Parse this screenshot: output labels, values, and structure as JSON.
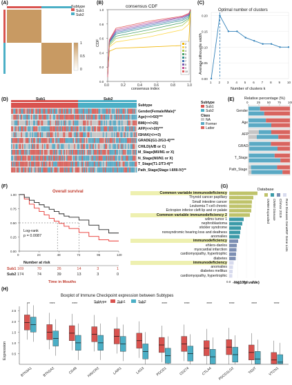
{
  "panel_labels": {
    "a": "(A)",
    "b": "(B)",
    "c": "(C)",
    "d": "(D)",
    "e": "(E)",
    "f": "(F)",
    "g": "(G)",
    "h": "(H)"
  },
  "colors": {
    "sub1": "#d9534f",
    "sub2": "#4bafc6",
    "heat_hi": "#c89a63",
    "heat_lo": "#ffffff",
    "heat_mid": "#e8d3b6",
    "km_sub1": "#e8332f",
    "km_sub2": "#222222",
    "na": "#c6c6c6",
    "former": "#5aa9c4",
    "latter": "#d8655f",
    "bar_olive": "#bfc36b",
    "bar_teal": "#3b9aa8",
    "bar_steel": "#7d8fb3",
    "bar_light": "#d8dbee"
  },
  "panel_a": {
    "legend_title": "Subtype",
    "legend_items": [
      "Sub1",
      "Sub2"
    ],
    "scale_ticks": [
      "1",
      "0.5",
      "0"
    ]
  },
  "panel_b": {
    "title": "consensus CDF",
    "xlabel": "consensus index",
    "ylabel": "CDF",
    "x_ticks": [
      "0.0",
      "0.2",
      "0.4",
      "0.6",
      "0.8",
      "1.0"
    ],
    "y_ticks": [
      "0.0",
      "0.2",
      "0.4",
      "0.6",
      "0.8",
      "1.0"
    ],
    "legend_items": [
      "2",
      "3",
      "4",
      "5",
      "6",
      "7",
      "8",
      "9",
      "10"
    ]
  },
  "panel_c": {
    "title": "Optimal number of clusters",
    "xlabel": "Number of clusters k",
    "ylabel": "Average silhouette width",
    "x_ticks": [
      "1",
      "2",
      "3",
      "4",
      "5",
      "6",
      "7",
      "8",
      "9",
      "10"
    ],
    "y_ticks": [
      "0.00",
      "0.05",
      "0.10",
      "0.15",
      "0.20"
    ]
  },
  "panel_d": {
    "header_sub1": "Sub1",
    "header_sub2": "Sub2",
    "rows": [
      "Subtype",
      "Gender(Female/Male)*",
      "Age(<=/>50)***",
      "BMI(<=/>25)",
      "AFP(<=/>20)***",
      "ISHAK(</>=3)",
      "GRADE(G1-2/G3-4)***",
      "CHILD(A/B or C)",
      "M_Stage(M0/M1 or X)",
      "N_Stage(N0/N1 or X)",
      "T_Stage(T1-2/T3-4)**",
      "Path_Stage(Stage I-II/III-IV)**"
    ],
    "legend_subtype_title": "Subtype",
    "legend_subtype": [
      "Sub1",
      "Sub2"
    ],
    "legend_class_title": "Class",
    "legend_class": [
      "NA",
      "Former",
      "Latter"
    ]
  },
  "panel_e": {
    "xlabel": "Relative percentage (%)",
    "x_ticks": [
      "0",
      "25",
      "50",
      "75",
      "100"
    ],
    "groups": [
      "Gender",
      "Age",
      "AFP",
      "GRADE",
      "T_Stage",
      "Path_Stage"
    ]
  },
  "panel_f": {
    "title": "Overall survival",
    "y_ticks": [
      "1.00",
      "0.75",
      "0.50",
      "0.25",
      "0.00"
    ],
    "x_ticks": [
      "0",
      "24",
      "48",
      "72",
      "96",
      "120"
    ],
    "logrank": "Log-rank",
    "pvalue": "p = 0.0087",
    "risk_title": "Number at risk",
    "risk_rows": [
      {
        "name": "Sub1",
        "values": [
          "169",
          "70",
          "26",
          "14",
          "3",
          "1"
        ]
      },
      {
        "name": "Sub2",
        "values": [
          "174",
          "74",
          "39",
          "13",
          "3",
          "0"
        ]
      }
    ],
    "xlabel": "Time in Mouths"
  },
  "panel_g": {
    "xlabel": "-log10(p.value)",
    "x_ticks": [
      "0.0",
      "2.5",
      "5.0",
      "7.5"
    ],
    "legend_title": "Database",
    "legend_items": [
      "OMIM Expanded",
      "OMIM Disease",
      "ClinVar 2019",
      "Rare Diseases GeneRIF Gene Lists"
    ],
    "terms": [
      {
        "label": "Common variable immunodeficiency",
        "value": 8.2,
        "db": "olive",
        "boxed": true
      },
      {
        "label": "Thyroid cancer papillary",
        "value": 7.0,
        "db": "olive",
        "boxed": false
      },
      {
        "label": "Small intestine cancer",
        "value": 6.6,
        "db": "olive",
        "boxed": false
      },
      {
        "label": "Leukemia T-cell chronic",
        "value": 6.5,
        "db": "olive",
        "boxed": false
      },
      {
        "label": "Ectropion inferior cleft lip and or palate",
        "value": 6.4,
        "db": "olive",
        "boxed": false
      },
      {
        "label": "Common variable immunodeficiency 2",
        "value": 6.0,
        "db": "olive",
        "boxed": true
      },
      {
        "label": "wilms tumor 1",
        "value": 4.2,
        "db": "teal",
        "boxed": false
      },
      {
        "label": "nephroblastoma",
        "value": 3.8,
        "db": "teal",
        "boxed": false
      },
      {
        "label": "stickler syndrome",
        "value": 3.4,
        "db": "teal",
        "boxed": false
      },
      {
        "label": "nonsyndromic hearing loss and deafness",
        "value": 3.2,
        "db": "teal",
        "boxed": false
      },
      {
        "label": "anomalies",
        "value": 3.0,
        "db": "teal",
        "boxed": false
      },
      {
        "label": "immunodeficiency",
        "value": 2.6,
        "db": "steel",
        "boxed": true
      },
      {
        "label": "ehlers-danlos",
        "value": 2.2,
        "db": "steel",
        "boxed": false
      },
      {
        "label": "myocardial infarction",
        "value": 2.1,
        "db": "steel",
        "boxed": false
      },
      {
        "label": "cardiomyopathy, hypertrophic",
        "value": 2.0,
        "db": "steel",
        "boxed": false
      },
      {
        "label": "diabetes",
        "value": 1.9,
        "db": "steel",
        "boxed": false
      },
      {
        "label": "immunodeficiency",
        "value": 1.3,
        "db": "light",
        "boxed": true
      },
      {
        "label": "anomalies",
        "value": 1.1,
        "db": "light",
        "boxed": false
      },
      {
        "label": "diabetes mellitus",
        "value": 1.0,
        "db": "light",
        "boxed": false
      },
      {
        "label": "cardiomyopathy, hypertrophic",
        "value": 0.9,
        "db": "light",
        "boxed": false
      }
    ]
  },
  "panel_h": {
    "title": "Boxplot of Immune Checkpoint expression between Subtypes",
    "legend_title": "Subtype",
    "legend_items": [
      "Sub1",
      "Sub2"
    ],
    "ylabel": "Expression",
    "y_ticks": [
      "0.5",
      "1.0",
      "1.5",
      "2.0",
      "2.5"
    ]
  },
  "chart_data": [
    {
      "type": "line",
      "title": "consensus CDF",
      "xlabel": "consensus index",
      "ylabel": "CDF",
      "xlim": [
        0,
        1
      ],
      "ylim": [
        0,
        1
      ],
      "legend": "bottom-right",
      "series": [
        {
          "name": "2",
          "x": [
            0,
            0.02,
            0.1,
            0.5,
            0.9,
            0.98,
            1.0
          ],
          "y": [
            0.12,
            0.42,
            0.46,
            0.48,
            0.5,
            0.55,
            1.0
          ]
        },
        {
          "name": "3",
          "x": [
            0,
            0.02,
            0.1,
            0.5,
            0.9,
            0.98,
            1.0
          ],
          "y": [
            0.1,
            0.48,
            0.55,
            0.62,
            0.72,
            0.8,
            1.0
          ]
        },
        {
          "name": "4",
          "x": [
            0,
            0.02,
            0.1,
            0.5,
            0.9,
            0.98,
            1.0
          ],
          "y": [
            0.09,
            0.5,
            0.6,
            0.68,
            0.78,
            0.86,
            1.0
          ]
        },
        {
          "name": "5",
          "x": [
            0,
            0.02,
            0.1,
            0.5,
            0.9,
            0.98,
            1.0
          ],
          "y": [
            0.08,
            0.52,
            0.63,
            0.72,
            0.82,
            0.88,
            1.0
          ]
        },
        {
          "name": "6",
          "x": [
            0,
            0.02,
            0.1,
            0.5,
            0.9,
            0.98,
            1.0
          ],
          "y": [
            0.08,
            0.54,
            0.66,
            0.76,
            0.85,
            0.9,
            1.0
          ]
        },
        {
          "name": "7",
          "x": [
            0,
            0.02,
            0.1,
            0.5,
            0.9,
            0.98,
            1.0
          ],
          "y": [
            0.07,
            0.55,
            0.68,
            0.78,
            0.87,
            0.92,
            1.0
          ]
        },
        {
          "name": "8",
          "x": [
            0,
            0.02,
            0.1,
            0.5,
            0.9,
            0.98,
            1.0
          ],
          "y": [
            0.07,
            0.56,
            0.7,
            0.8,
            0.89,
            0.93,
            1.0
          ]
        },
        {
          "name": "9",
          "x": [
            0,
            0.02,
            0.1,
            0.5,
            0.9,
            0.98,
            1.0
          ],
          "y": [
            0.06,
            0.57,
            0.72,
            0.82,
            0.9,
            0.94,
            1.0
          ]
        },
        {
          "name": "10",
          "x": [
            0,
            0.02,
            0.1,
            0.5,
            0.9,
            0.98,
            1.0
          ],
          "y": [
            0.06,
            0.58,
            0.74,
            0.84,
            0.91,
            0.95,
            1.0
          ]
        }
      ]
    },
    {
      "type": "line",
      "title": "Optimal number of clusters",
      "xlabel": "Number of clusters k",
      "ylabel": "Average silhouette width",
      "x": [
        1,
        2,
        3,
        4,
        5,
        6,
        7,
        8,
        9,
        10
      ],
      "y": [
        0.0,
        0.2,
        0.15,
        0.15,
        0.13,
        0.12,
        0.11,
        0.11,
        0.1,
        0.1
      ],
      "ylim": [
        0,
        0.21
      ],
      "vline": 2
    },
    {
      "type": "bar",
      "orientation": "horizontal",
      "stacked": true,
      "xlabel": "Relative percentage (%)",
      "groups": [
        "Gender",
        "Age",
        "AFP",
        "GRADE",
        "T_Stage",
        "Path_Stage"
      ],
      "series": [
        {
          "name": "NA",
          "values_sub1": [
            0,
            0,
            25,
            2,
            1,
            6
          ],
          "values_sub2": [
            0,
            0,
            20,
            2,
            1,
            7
          ]
        },
        {
          "name": "Former",
          "values_sub1": [
            28,
            42,
            30,
            52,
            62,
            63
          ],
          "values_sub2": [
            38,
            55,
            52,
            68,
            76,
            75
          ]
        },
        {
          "name": "Latter",
          "values_sub1": [
            72,
            58,
            45,
            46,
            37,
            31
          ],
          "values_sub2": [
            62,
            45,
            28,
            30,
            23,
            18
          ]
        }
      ]
    },
    {
      "type": "line",
      "title": "Overall survival",
      "xlabel": "Time in Mouths",
      "xlim": [
        0,
        120
      ],
      "ylim": [
        0,
        1
      ],
      "series": [
        {
          "name": "Sub1",
          "x": [
            0,
            6,
            12,
            18,
            24,
            30,
            36,
            42,
            48,
            54,
            60,
            72,
            84,
            96,
            108,
            120
          ],
          "y": [
            1.0,
            0.92,
            0.83,
            0.76,
            0.7,
            0.64,
            0.58,
            0.53,
            0.49,
            0.44,
            0.4,
            0.33,
            0.26,
            0.2,
            0.18,
            0.18
          ]
        },
        {
          "name": "Sub2",
          "x": [
            0,
            6,
            12,
            18,
            24,
            30,
            36,
            42,
            48,
            54,
            60,
            72,
            84,
            96,
            108,
            120
          ],
          "y": [
            1.0,
            0.95,
            0.9,
            0.86,
            0.82,
            0.78,
            0.74,
            0.7,
            0.66,
            0.62,
            0.6,
            0.55,
            0.46,
            0.38,
            0.32,
            0.32
          ]
        }
      ]
    },
    {
      "type": "box",
      "title": "Boxplot of Immune Checkpoint expression between Subtypes",
      "ylabel": "Expression",
      "categories": [
        "BTN3A1",
        "BTN2A2",
        "CD48",
        "HAVCR2",
        "LAIR1",
        "LAG3",
        "PDCD1",
        "CD274",
        "CTLA4",
        "PDCD1LG2",
        "TIGIT",
        "VTCN1"
      ],
      "significance": [
        "**",
        "****",
        "****",
        "****",
        "****",
        "****",
        "****",
        "****",
        "****",
        "****",
        "****",
        "****"
      ],
      "series": [
        {
          "name": "Sub1",
          "median": [
            1.95,
            1.5,
            1.45,
            1.4,
            1.3,
            1.1,
            0.9,
            0.95,
            0.75,
            0.8,
            0.55,
            0.2
          ]
        },
        {
          "name": "Sub2",
          "median": [
            1.85,
            1.2,
            1.0,
            1.0,
            0.95,
            0.6,
            0.4,
            0.5,
            0.35,
            0.45,
            0.25,
            0.1
          ]
        }
      ]
    }
  ]
}
